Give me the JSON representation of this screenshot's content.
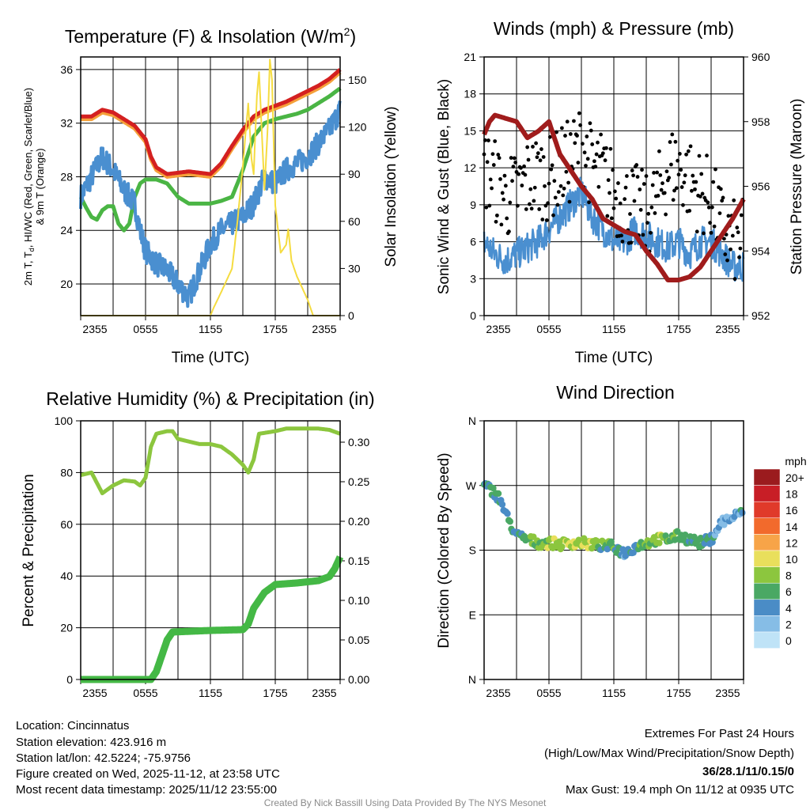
{
  "time_ticks": [
    "2355",
    "0555",
    "1155",
    "1755",
    "2355"
  ],
  "chart_data": [
    {
      "type": "line",
      "title_main": "Temperature (F) & Insolation (W/m",
      "title_sup": "2",
      "title_end": ")",
      "xlabel": "Time (UTC)",
      "ylabel_line1_a": "2m T, T",
      "ylabel_line1_sub": "d",
      "ylabel_line1_b": ", HI/WC (Red, Green, Scarlet/Blue)",
      "ylabel_line2": "& 9m T (Orange)",
      "y2label": "Solar Insolation (Yellow)",
      "ylim": [
        17.64,
        36.94
      ],
      "y2lim": [
        0,
        164.6
      ],
      "yticks": [
        20,
        24,
        28,
        32,
        36
      ],
      "y2ticks": [
        0,
        30,
        60,
        90,
        120,
        150
      ],
      "xlim": [
        0,
        24
      ],
      "series": [
        {
          "name": "9m T",
          "color": "#f5a03a",
          "axis": "left",
          "width": 5,
          "x": [
            0,
            1,
            2,
            3,
            4,
            5,
            6,
            6.5,
            7,
            8,
            9,
            10,
            11,
            12,
            13,
            14,
            15,
            16,
            17,
            18,
            19,
            20,
            21,
            22,
            23,
            24
          ],
          "y": [
            32.3,
            32.3,
            32.8,
            32.6,
            32.1,
            31.6,
            30.6,
            29.3,
            28.5,
            28.0,
            28.1,
            28.2,
            28.1,
            28.0,
            28.8,
            30.1,
            31.3,
            32.3,
            32.8,
            33.1,
            33.4,
            33.8,
            34.2,
            34.6,
            35.1,
            35.8
          ]
        },
        {
          "name": "2m T",
          "color": "#d42020",
          "axis": "left",
          "width": 5,
          "x": [
            0,
            1,
            2,
            3,
            4,
            5,
            6,
            6.5,
            7,
            8,
            9,
            10,
            11,
            12,
            13,
            14,
            15,
            16,
            17,
            18,
            19,
            20,
            21,
            22,
            23,
            24
          ],
          "y": [
            32.5,
            32.5,
            33,
            32.8,
            32.3,
            31.8,
            30.8,
            29.5,
            28.7,
            28.2,
            28.3,
            28.4,
            28.3,
            28.2,
            29,
            30.3,
            31.5,
            32.5,
            33,
            33.3,
            33.6,
            34,
            34.4,
            34.8,
            35.3,
            36
          ]
        },
        {
          "name": "Td",
          "color": "#4ab544",
          "axis": "left",
          "width": 5,
          "x": [
            0,
            0.5,
            1,
            1.5,
            2,
            2.5,
            3,
            3.5,
            4,
            4.5,
            5,
            5.5,
            6,
            7,
            8,
            9,
            10,
            11,
            12,
            13,
            14,
            15,
            16,
            17,
            18,
            19,
            20,
            21,
            22,
            23,
            24
          ],
          "y": [
            26.5,
            25.7,
            25,
            24.8,
            25.5,
            25.8,
            25.8,
            24.5,
            24,
            24.5,
            26.5,
            27.5,
            27.8,
            27.8,
            27.5,
            26.5,
            26,
            26,
            26,
            26.2,
            26.5,
            28.5,
            31,
            32,
            32.3,
            32.5,
            32.7,
            33,
            33.5,
            34,
            34.6
          ]
        },
        {
          "name": "HI/WC",
          "color": "#4a8fd0",
          "axis": "left",
          "width": 4,
          "noise": 0.9,
          "x": [
            0,
            1,
            2,
            3,
            4,
            5,
            5.5,
            6,
            7,
            8,
            9,
            10,
            11,
            12,
            13,
            14,
            15,
            16,
            17,
            18,
            19,
            20,
            21,
            22,
            23,
            24
          ],
          "y": [
            26.5,
            28,
            29.5,
            28.5,
            27,
            26,
            24,
            22.5,
            21.5,
            21,
            20,
            19,
            21,
            23,
            24,
            24.5,
            25,
            26,
            28,
            27.5,
            28.5,
            29,
            29.5,
            30.5,
            31.5,
            33
          ]
        },
        {
          "name": "Solar Insolation",
          "color": "#f5dc40",
          "axis": "right",
          "width": 2,
          "x": [
            0,
            12,
            12.3,
            13,
            14,
            14.5,
            15,
            15.3,
            15.5,
            15.8,
            16,
            16.3,
            16.5,
            16.8,
            17,
            17.3,
            17.5,
            17.7,
            18,
            18.5,
            19,
            19.2,
            19.5,
            20,
            21,
            21.5,
            24
          ],
          "y": [
            0,
            0,
            5,
            15,
            30,
            60,
            95,
            120,
            135,
            100,
            90,
            140,
            155,
            110,
            80,
            120,
            163,
            150,
            70,
            40,
            45,
            55,
            35,
            25,
            10,
            0,
            0
          ]
        }
      ]
    },
    {
      "type": "line",
      "title": "Winds (mph) & Pressure (mb)",
      "xlabel": "Time (UTC)",
      "ylabel": "Sonic Wind & Gust (Blue, Black)",
      "y2label": "Station Pressure (Maroon)",
      "ylim": [
        0,
        21
      ],
      "y2lim": [
        952,
        960
      ],
      "yticks": [
        0,
        3,
        6,
        9,
        12,
        15,
        18,
        21
      ],
      "y2ticks": [
        952,
        954,
        956,
        958,
        960
      ],
      "xlim": [
        0,
        24
      ],
      "series": [
        {
          "name": "Sonic Wind",
          "color": "#4a8fd0",
          "axis": "left",
          "width": 2.5,
          "noise": 1.3,
          "x": [
            0,
            1,
            2,
            3,
            4,
            5,
            6,
            7,
            8,
            9,
            10,
            11,
            12,
            13,
            14,
            15,
            16,
            17,
            18,
            19,
            20,
            21,
            22,
            23,
            24
          ],
          "y": [
            6,
            5,
            4.5,
            5,
            5.5,
            6,
            7,
            8,
            9,
            10,
            8,
            7,
            6,
            6,
            7,
            6.5,
            6,
            5.5,
            6,
            5,
            6,
            6,
            5,
            4,
            4
          ]
        },
        {
          "name": "Gust",
          "color": "#000000",
          "axis": "left",
          "type": "scatter",
          "spread": 3.5,
          "x": [
            0,
            1,
            2,
            3,
            4,
            5,
            6,
            7,
            8,
            9,
            10,
            11,
            12,
            13,
            14,
            15,
            16,
            17,
            18,
            19,
            20,
            21,
            22,
            23,
            24
          ],
          "y": [
            12,
            11,
            9.5,
            10,
            11,
            11.5,
            11,
            12,
            12.5,
            14,
            12,
            11.5,
            10,
            9,
            9,
            8,
            9.5,
            12,
            12,
            11,
            10,
            9.5,
            7,
            6,
            6
          ]
        },
        {
          "name": "Station Pressure",
          "color": "#a01c1c",
          "axis": "right",
          "width": 6,
          "x": [
            0,
            0.5,
            1,
            2,
            3,
            4,
            5,
            6,
            6.5,
            7,
            8,
            9,
            10,
            11,
            12,
            13,
            14,
            15,
            16,
            17,
            18,
            19,
            20,
            21,
            22,
            23,
            24
          ],
          "y": [
            957.6,
            958,
            958.2,
            958.1,
            958,
            957.5,
            957.7,
            958,
            957.5,
            957,
            956.5,
            956,
            955.6,
            955,
            954.8,
            954.6,
            954.5,
            954,
            953.6,
            953.1,
            953.1,
            953.2,
            953.5,
            954,
            954.5,
            955,
            955.6
          ]
        }
      ]
    },
    {
      "type": "line",
      "title": "Relative Humidity (%) & Precipitation (in)",
      "ylabel": "Percent & Precipitation",
      "ylim": [
        0,
        100
      ],
      "y2lim": [
        0,
        0.327
      ],
      "yticks": [
        0,
        20,
        40,
        60,
        80,
        100
      ],
      "y2ticks": [
        "0.00",
        "0.05",
        "0.10",
        "0.15",
        "0.20",
        "0.25",
        "0.30"
      ],
      "xlim": [
        0,
        24
      ],
      "series": [
        {
          "name": "Relative Humidity",
          "color": "#8cc63e",
          "axis": "left",
          "width": 5,
          "x": [
            0,
            1,
            1.5,
            2,
            3,
            4,
            5,
            5.5,
            6,
            6.5,
            7,
            8,
            8.5,
            9,
            10,
            11,
            12,
            13,
            14,
            15,
            15.5,
            16,
            16.5,
            18,
            19,
            20,
            21,
            22,
            23,
            24
          ],
          "y": [
            79,
            80,
            76,
            72,
            75,
            77,
            76.5,
            75,
            78,
            90,
            95,
            96,
            96,
            93,
            92,
            91,
            91,
            90,
            87,
            83,
            80,
            85,
            95,
            96,
            97,
            97,
            97,
            97,
            96.5,
            95
          ]
        },
        {
          "name": "Precipitation",
          "color": "#44b845",
          "axis": "right",
          "width": 9,
          "x": [
            0,
            6.5,
            7,
            7.5,
            8,
            8.5,
            12,
            15,
            15.5,
            16,
            17,
            18,
            20,
            22,
            23,
            23.5,
            24
          ],
          "y": [
            0,
            0,
            0.01,
            0.03,
            0.05,
            0.06,
            0.062,
            0.063,
            0.07,
            0.09,
            0.11,
            0.12,
            0.122,
            0.125,
            0.13,
            0.14,
            0.155
          ]
        }
      ]
    },
    {
      "type": "scatter",
      "title": "Wind Direction",
      "ylabel": "Direction (Colored By Speed)",
      "ylim": [
        0,
        360
      ],
      "yticks": [
        "N",
        "E",
        "S",
        "W",
        "N"
      ],
      "xlim": [
        0,
        24
      ],
      "x": [
        0,
        1,
        1.5,
        2,
        3,
        4,
        5,
        6,
        7,
        8,
        9,
        10,
        11,
        12,
        13,
        14,
        15,
        16,
        17,
        18,
        19,
        20,
        21,
        22,
        23,
        24
      ],
      "direction": [
        270,
        260,
        250,
        230,
        200,
        195,
        190,
        190,
        188,
        190,
        190,
        188,
        186,
        185,
        175,
        185,
        190,
        195,
        195,
        200,
        195,
        190,
        195,
        220,
        225,
        235
      ],
      "speed": [
        5,
        6,
        5,
        4,
        5,
        6,
        7,
        8,
        8,
        9,
        9,
        8,
        6,
        6,
        4,
        5,
        7,
        8,
        7,
        6,
        6,
        5,
        5,
        3,
        3,
        4
      ],
      "colorbar": {
        "title": "mph",
        "labels": [
          "20+",
          "18",
          "16",
          "14",
          "12",
          "10",
          "8",
          "6",
          "4",
          "2",
          "0"
        ],
        "colors": [
          "#9b1b1e",
          "#c81e26",
          "#e03a2a",
          "#f26a2c",
          "#f7a448",
          "#e9df5c",
          "#8cc63e",
          "#4aa864",
          "#4a8cc6",
          "#86bde6",
          "#bfe3f7"
        ]
      }
    }
  ],
  "footer": {
    "location": "Location: Cincinnatus",
    "elevation": "Station elevation: 423.916 m",
    "latlon": "Station lat/lon: 42.5224; -75.9756",
    "created": "Figure created on Wed, 2025-11-12, at 23:58 UTC",
    "recent": "Most recent data timestamp: 2025/11/12 23:55:00",
    "extremes_title": "Extremes For Past 24 Hours",
    "extremes_fields": "(High/Low/Max Wind/Precipitation/Snow Depth)",
    "extremes_values": "36/28.1/11/0.15/0",
    "max_gust": "Max Gust: 19.4 mph On 11/12 at 0935 UTC",
    "credit": "Created By Nick Bassill Using Data Provided By The NYS Mesonet"
  },
  "colors": {
    "extremes": "#d42020",
    "credit": "#8a8a8a"
  }
}
